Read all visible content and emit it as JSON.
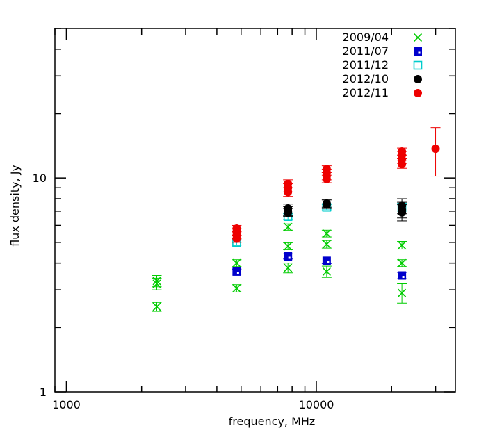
{
  "chart_data": {
    "type": "scatter",
    "xscale": "log",
    "yscale": "log",
    "xlim": [
      900,
      36000
    ],
    "ylim": [
      1,
      50
    ],
    "xlabel": "frequency, MHz",
    "ylabel": "flux density, Jy",
    "x_tick_labels": [
      {
        "value": 1000,
        "label": "1000"
      },
      {
        "value": 10000,
        "label": "10000"
      }
    ],
    "y_tick_labels": [
      {
        "value": 1,
        "label": "1"
      },
      {
        "value": 10,
        "label": "10"
      }
    ],
    "legend_position": "top-right",
    "grid": false,
    "series": [
      {
        "name": "2009/04",
        "marker": "x",
        "color": "#00cc00",
        "points": [
          {
            "x": 2300,
            "y": 3.3,
            "err": 0.2
          },
          {
            "x": 2300,
            "y": 3.2,
            "err": 0.2
          },
          {
            "x": 2300,
            "y": 2.5,
            "err": 0.12
          },
          {
            "x": 4800,
            "y": 4.0,
            "err": 0.15
          },
          {
            "x": 4800,
            "y": 3.05,
            "err": 0.12
          },
          {
            "x": 7700,
            "y": 5.9,
            "err": 0.2
          },
          {
            "x": 7700,
            "y": 4.8,
            "err": 0.18
          },
          {
            "x": 7700,
            "y": 3.8,
            "err": 0.2
          },
          {
            "x": 11000,
            "y": 5.5,
            "err": 0.2
          },
          {
            "x": 11000,
            "y": 4.9,
            "err": 0.2
          },
          {
            "x": 11000,
            "y": 3.65,
            "err": 0.22
          },
          {
            "x": 22000,
            "y": 4.85,
            "err": 0.2
          },
          {
            "x": 22000,
            "y": 4.0,
            "err": 0.15
          },
          {
            "x": 22000,
            "y": 2.9,
            "err": 0.3
          }
        ]
      },
      {
        "name": "2011/07",
        "marker": "square-filled",
        "color": "#0000cc",
        "points": [
          {
            "x": 4800,
            "y": 3.65,
            "err": 0.1
          },
          {
            "x": 7700,
            "y": 4.3,
            "err": 0.12
          },
          {
            "x": 11000,
            "y": 4.1,
            "err": 0.12
          },
          {
            "x": 22000,
            "y": 3.5,
            "err": 0.12
          }
        ]
      },
      {
        "name": "2011/12",
        "marker": "square-open",
        "color": "#00cccc",
        "points": [
          {
            "x": 4800,
            "y": 5.0,
            "err": 0.15
          },
          {
            "x": 7700,
            "y": 6.6,
            "err": 0.2
          },
          {
            "x": 11000,
            "y": 7.3,
            "err": 0.2
          },
          {
            "x": 22000,
            "y": 7.3,
            "err": 0.3
          }
        ]
      },
      {
        "name": "2012/10",
        "marker": "circle-filled",
        "color": "#000000",
        "points": [
          {
            "x": 7700,
            "y": 7.0,
            "err": 0.35
          },
          {
            "x": 7700,
            "y": 7.2,
            "err": 0.35
          },
          {
            "x": 7700,
            "y": 6.9,
            "err": 0.3
          },
          {
            "x": 11000,
            "y": 7.5,
            "err": 0.3
          },
          {
            "x": 11000,
            "y": 7.6,
            "err": 0.3
          },
          {
            "x": 22000,
            "y": 7.4,
            "err": 0.6
          },
          {
            "x": 22000,
            "y": 7.1,
            "err": 0.6
          },
          {
            "x": 22000,
            "y": 6.9,
            "err": 0.6
          }
        ]
      },
      {
        "name": "2012/11",
        "marker": "circle-filled",
        "color": "#ee0000",
        "points": [
          {
            "x": 4800,
            "y": 5.8,
            "err": 0.2
          },
          {
            "x": 4800,
            "y": 5.6,
            "err": 0.2
          },
          {
            "x": 4800,
            "y": 5.4,
            "err": 0.2
          },
          {
            "x": 4800,
            "y": 5.2,
            "err": 0.2
          },
          {
            "x": 7700,
            "y": 9.4,
            "err": 0.4
          },
          {
            "x": 7700,
            "y": 9.0,
            "err": 0.4
          },
          {
            "x": 7700,
            "y": 8.6,
            "err": 0.4
          },
          {
            "x": 11000,
            "y": 11.0,
            "err": 0.4
          },
          {
            "x": 11000,
            "y": 10.6,
            "err": 0.4
          },
          {
            "x": 11000,
            "y": 10.2,
            "err": 0.4
          },
          {
            "x": 11000,
            "y": 9.9,
            "err": 0.4
          },
          {
            "x": 22000,
            "y": 13.3,
            "err": 0.5
          },
          {
            "x": 22000,
            "y": 12.8,
            "err": 0.5
          },
          {
            "x": 22000,
            "y": 12.2,
            "err": 0.5
          },
          {
            "x": 22000,
            "y": 11.6,
            "err": 0.5
          },
          {
            "x": 30000,
            "y": 13.7,
            "err": 3.5
          }
        ]
      }
    ]
  }
}
